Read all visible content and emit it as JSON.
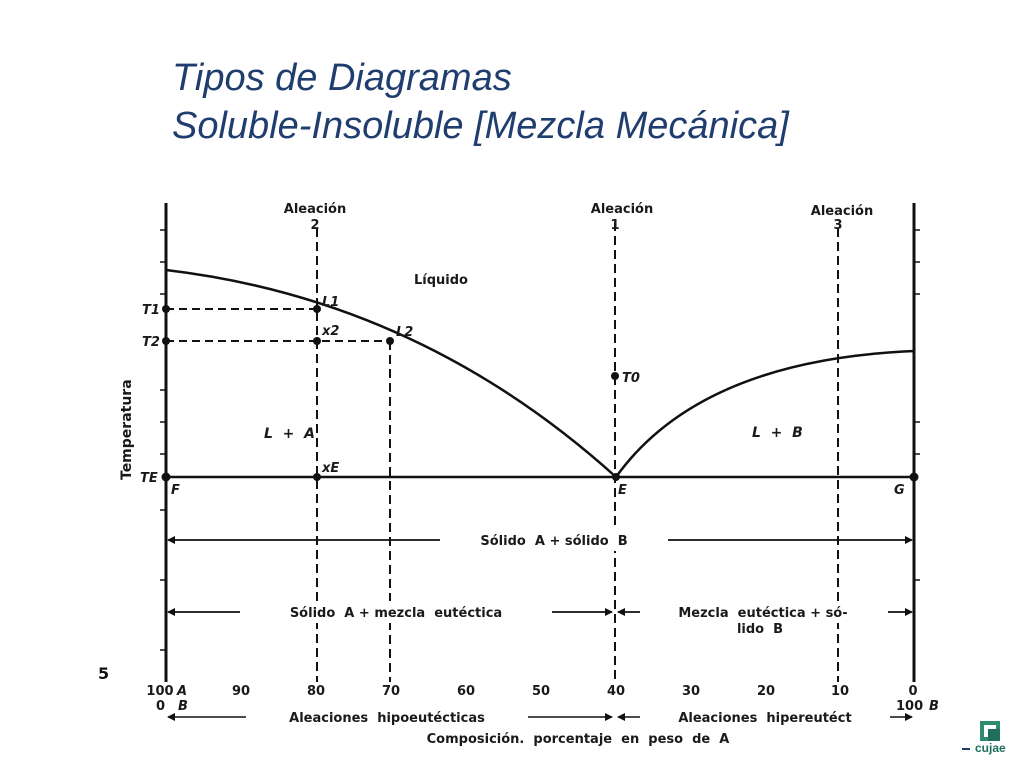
{
  "title": {
    "line1": "Tipos de Diagramas",
    "line2": "Soluble-Insoluble  [Mezcla Mecánica]"
  },
  "diagram": {
    "alloys": [
      {
        "label": "Aleación",
        "num": "2"
      },
      {
        "label": "Aleación",
        "num": "1"
      },
      {
        "label": "Aleación",
        "num": "3"
      }
    ],
    "regions": {
      "liquid": "Líquido",
      "l_plus_a": "L  +  A",
      "l_plus_b": "L  +  B",
      "solid_a_solid_b": "Sólido  A + sólido  B",
      "solid_a_eutectic": "Sólido  A + mezcla  eutéctica",
      "eutectic_solid_b_1": "Mezcla  eutéctica + só-",
      "eutectic_solid_b_2": "lido  B"
    },
    "points": {
      "L1": "L1",
      "L2": "L2",
      "x2": "x2",
      "xE": "xE",
      "T0": "T0",
      "E": "E",
      "F": "F",
      "G": "G",
      "T1": "T1",
      "T2": "T2",
      "TE": "TE"
    },
    "y_axis_label": "Temperatura",
    "x_ticks_a": [
      "100",
      "90",
      "80",
      "70",
      "60",
      "50",
      "40",
      "30",
      "20",
      "10",
      "0"
    ],
    "x_ticks_b": [
      "0",
      "",
      "",
      "",
      "",
      "",
      "",
      "",
      "",
      "",
      "100"
    ],
    "end_labels": {
      "a_top": "A",
      "b_bottom_left": "B",
      "b_right": "B"
    },
    "hypo_label": "Aleaciones  hipoeutécticas",
    "hyper_label": "Aleaciones  hipereutéct",
    "x_axis_label": "Composición.  porcentaje  en  peso  de  A"
  },
  "slide_number": "5",
  "logo": {
    "text": "cujae"
  }
}
